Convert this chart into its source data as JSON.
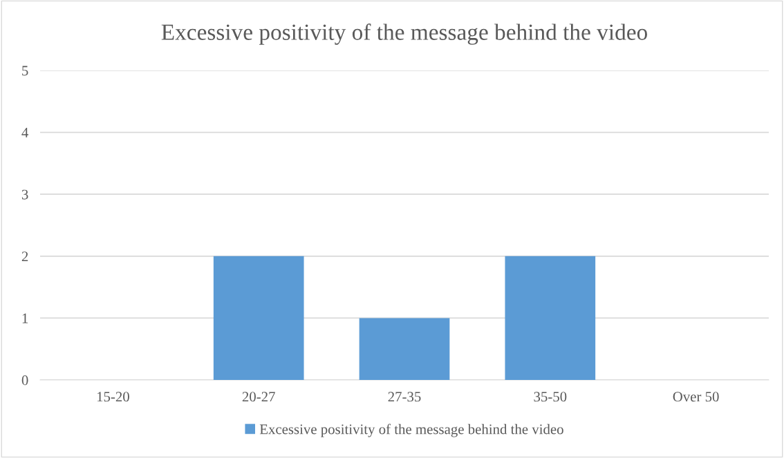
{
  "chart_data": {
    "type": "bar",
    "title": "Excessive positivity of the message behind the video",
    "categories": [
      "15-20",
      "20-27",
      "27-35",
      "35-50",
      "Over 50"
    ],
    "series": [
      {
        "name": "Excessive positivity of the message behind the video",
        "color": "#5b9bd5",
        "values": [
          0,
          2,
          1,
          2,
          0
        ]
      }
    ],
    "ylim": [
      0,
      5
    ],
    "yticks": [
      0,
      1,
      2,
      3,
      4,
      5
    ],
    "grid": "y",
    "legend": "bottom"
  }
}
